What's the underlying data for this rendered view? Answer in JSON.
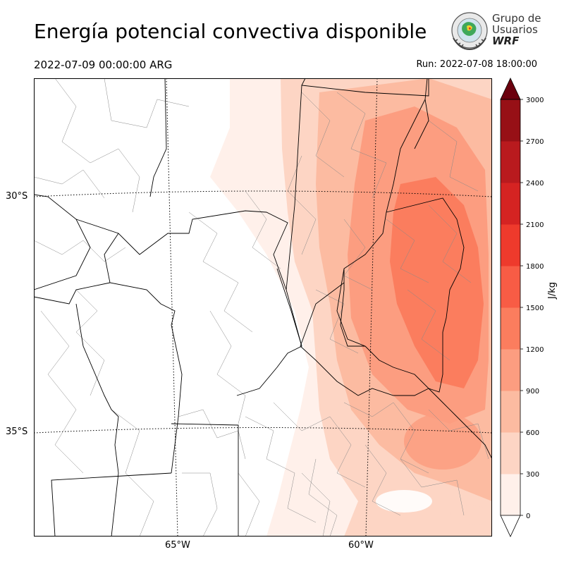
{
  "header": {
    "title": "Energía potencial convectiva disponible",
    "valid_time": "2022-07-09 00:00:00 ARG",
    "run_time": "Run: 2022-07-08 18:00:00"
  },
  "logo": {
    "line1": "Grupo de",
    "line2": "Usuarios",
    "line3": "WRF"
  },
  "map": {
    "lat_labels": [
      "30°S",
      "35°S"
    ],
    "lon_labels": [
      "65°W",
      "60°W"
    ]
  },
  "colorbar": {
    "unit": "J/kg",
    "ticks": [
      "0",
      "300",
      "600",
      "900",
      "1200",
      "1500",
      "1800",
      "2100",
      "2400",
      "2700",
      "3000"
    ],
    "colors": [
      "#fff0ea",
      "#fdd5c4",
      "#fcbba1",
      "#fc9d80",
      "#fb7d5e",
      "#f85c45",
      "#ee3a2c",
      "#d52322",
      "#b91a1e",
      "#971016",
      "#6b010e"
    ]
  }
}
